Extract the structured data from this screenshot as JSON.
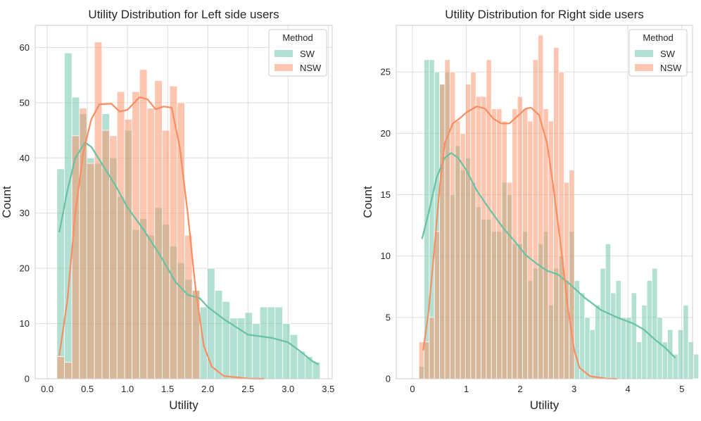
{
  "colors": {
    "sw": "#66c2a5",
    "nsw": "#fc8d62",
    "grid": "#dddddd",
    "text": "#262626"
  },
  "chart_data": [
    {
      "type": "histogram",
      "title": "Utility Distribution for Left side users",
      "xlabel": "Utility",
      "ylabel": "Count",
      "xlim": [
        -0.15,
        3.55
      ],
      "ylim": [
        0,
        64
      ],
      "xticks": [
        0.0,
        0.5,
        1.0,
        1.5,
        2.0,
        2.5,
        3.0,
        3.5
      ],
      "xtick_labels": [
        "0.0",
        "0.5",
        "1.0",
        "1.5",
        "2.0",
        "2.5",
        "3.0",
        "3.5"
      ],
      "yticks": [
        0,
        10,
        20,
        30,
        40,
        50,
        60
      ],
      "ytick_labels": [
        "0",
        "10",
        "20",
        "30",
        "40",
        "50",
        "60"
      ],
      "grid": true,
      "legend": {
        "title": "Method",
        "position": "upper right",
        "entries": [
          "SW",
          "NSW"
        ]
      },
      "series": [
        {
          "name": "SW",
          "bin_start": 0.12,
          "bin_width": 0.0937,
          "counts": [
            38,
            59,
            51,
            48,
            40,
            39,
            48,
            40,
            33,
            45,
            27,
            29,
            26,
            31,
            28,
            24,
            21,
            18,
            16,
            13,
            20,
            16,
            14,
            11,
            11,
            12,
            10,
            13,
            13,
            13,
            10,
            8,
            5,
            4,
            3
          ],
          "kde": [
            [
              0.15,
              26.5
            ],
            [
              0.25,
              34
            ],
            [
              0.35,
              40
            ],
            [
              0.47,
              42.8
            ],
            [
              0.55,
              42
            ],
            [
              0.7,
              38.5
            ],
            [
              0.85,
              35
            ],
            [
              1.0,
              31
            ],
            [
              1.2,
              27
            ],
            [
              1.4,
              22.5
            ],
            [
              1.6,
              17.5
            ],
            [
              1.75,
              15.2
            ],
            [
              1.9,
              14.6
            ],
            [
              2.0,
              13
            ],
            [
              2.2,
              10.8
            ],
            [
              2.5,
              8
            ],
            [
              2.8,
              7.4
            ],
            [
              3.0,
              6.6
            ],
            [
              3.15,
              5
            ],
            [
              3.3,
              3.2
            ],
            [
              3.38,
              2.6
            ]
          ]
        },
        {
          "name": "NSW",
          "bin_start": 0.12,
          "bin_width": 0.0937,
          "counts": [
            4,
            3,
            44,
            49,
            39,
            61,
            45,
            44,
            52,
            47,
            52,
            56,
            49,
            54,
            45,
            53,
            50,
            26,
            16,
            0,
            0,
            0,
            0,
            0,
            0,
            0,
            0,
            0,
            0,
            0,
            0,
            0,
            0,
            0,
            0
          ],
          "kde": [
            [
              0.15,
              4.2
            ],
            [
              0.25,
              14
            ],
            [
              0.35,
              30
            ],
            [
              0.45,
              41
            ],
            [
              0.55,
              47
            ],
            [
              0.65,
              49.7
            ],
            [
              0.8,
              49.8
            ],
            [
              0.9,
              48.4
            ],
            [
              1.0,
              48.7
            ],
            [
              1.15,
              51
            ],
            [
              1.25,
              50.6
            ],
            [
              1.35,
              48.8
            ],
            [
              1.45,
              49.3
            ],
            [
              1.55,
              49.1
            ],
            [
              1.65,
              42
            ],
            [
              1.75,
              30
            ],
            [
              1.85,
              16
            ],
            [
              1.95,
              6
            ],
            [
              2.05,
              2.2
            ],
            [
              2.2,
              0.5
            ],
            [
              2.5,
              0.05
            ],
            [
              2.7,
              0.0
            ]
          ]
        }
      ]
    },
    {
      "type": "histogram",
      "title": "Utility Distribution for Right side users",
      "xlabel": "Utility",
      "ylabel": "Count",
      "xlim": [
        -0.3,
        5.2
      ],
      "ylim": [
        0,
        28.8
      ],
      "xticks": [
        0,
        1,
        2,
        3,
        4,
        5
      ],
      "xtick_labels": [
        "0",
        "1",
        "2",
        "3",
        "4",
        "5"
      ],
      "yticks": [
        0,
        5,
        10,
        15,
        20,
        25
      ],
      "ytick_labels": [
        "0",
        "5",
        "10",
        "15",
        "20",
        "25"
      ],
      "grid": true,
      "legend": {
        "title": "Method",
        "position": "upper right",
        "entries": [
          "SW",
          "NSW"
        ]
      },
      "series": [
        {
          "name": "SW",
          "bin_start": 0.12,
          "bin_width": 0.0962,
          "counts": [
            1,
            26,
            26,
            25,
            24,
            25,
            15,
            19,
            17,
            18,
            16,
            14,
            13,
            13,
            12,
            12,
            16,
            15,
            11,
            11,
            12,
            8,
            9,
            11,
            12,
            6,
            9,
            10,
            8,
            12,
            8,
            7,
            5,
            4,
            6,
            9,
            11,
            7,
            8,
            5,
            5,
            7,
            3,
            6,
            8,
            9,
            5,
            3,
            4,
            2,
            4,
            6,
            3,
            2
          ],
          "kde": [
            [
              0.18,
              11.4
            ],
            [
              0.3,
              13.5
            ],
            [
              0.45,
              16.4
            ],
            [
              0.6,
              18
            ],
            [
              0.72,
              18.4
            ],
            [
              0.85,
              18
            ],
            [
              1.0,
              17
            ],
            [
              1.2,
              15.3
            ],
            [
              1.45,
              13.7
            ],
            [
              1.7,
              12.2
            ],
            [
              1.9,
              11.2
            ],
            [
              2.1,
              10.1
            ],
            [
              2.3,
              9.4
            ],
            [
              2.5,
              8.8
            ],
            [
              2.7,
              8.5
            ],
            [
              2.9,
              7.8
            ],
            [
              3.2,
              6.6
            ],
            [
              3.5,
              5.6
            ],
            [
              3.8,
              5
            ],
            [
              4.1,
              4.5
            ],
            [
              4.3,
              4
            ],
            [
              4.5,
              3.2
            ],
            [
              4.7,
              2.5
            ],
            [
              4.88,
              1.7
            ]
          ]
        },
        {
          "name": "NSW",
          "bin_start": 0.12,
          "bin_width": 0.0962,
          "counts": [
            3,
            3,
            5,
            12,
            24,
            26,
            25,
            21,
            20,
            24,
            25,
            23,
            23,
            26,
            22,
            22,
            21,
            16,
            22,
            23,
            22,
            21,
            26,
            28,
            22,
            21,
            27,
            25,
            16,
            17,
            0,
            0,
            0,
            0,
            0,
            0,
            0,
            0,
            0,
            0,
            0,
            0,
            0,
            0,
            0,
            0,
            0,
            0,
            0,
            0,
            0,
            0,
            0,
            0
          ],
          "kde": [
            [
              0.2,
              2.3
            ],
            [
              0.3,
              5.5
            ],
            [
              0.4,
              10.2
            ],
            [
              0.5,
              15.3
            ],
            [
              0.6,
              19.2
            ],
            [
              0.75,
              20.8
            ],
            [
              0.9,
              21.3
            ],
            [
              1.0,
              21.7
            ],
            [
              1.2,
              22.2
            ],
            [
              1.35,
              22.0
            ],
            [
              1.5,
              21.2
            ],
            [
              1.65,
              20.8
            ],
            [
              1.8,
              20.8
            ],
            [
              1.95,
              21.4
            ],
            [
              2.1,
              22.0
            ],
            [
              2.2,
              22.1
            ],
            [
              2.35,
              21.5
            ],
            [
              2.5,
              19.2
            ],
            [
              2.62,
              15.5
            ],
            [
              2.75,
              11
            ],
            [
              2.88,
              6
            ],
            [
              3.0,
              2.4
            ],
            [
              3.1,
              0.9
            ],
            [
              3.3,
              0.2
            ],
            [
              3.6,
              0.02
            ],
            [
              3.8,
              0.0
            ]
          ]
        }
      ]
    }
  ]
}
